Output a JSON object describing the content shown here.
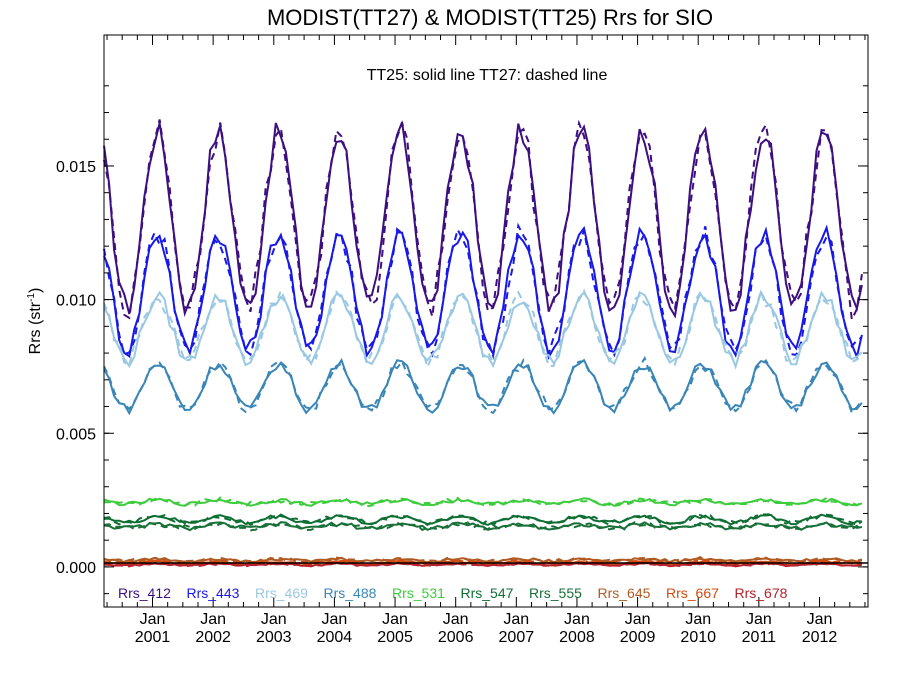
{
  "chart_data": {
    "type": "line",
    "title": "MODIST(TT27) & MODIST(TT25)  Rrs for SIO",
    "subtitle": "TT25: solid line   TT27: dashed line",
    "ylabel_base": "Rrs (str",
    "ylabel_sup": "-1",
    "ylabel_close": ")",
    "ylim": [
      -0.0015,
      0.0199
    ],
    "xlim": [
      2000.2,
      2012.8
    ],
    "yticks": [
      {
        "value": 0.0,
        "label": "0.000"
      },
      {
        "value": 0.005,
        "label": "0.005"
      },
      {
        "value": 0.01,
        "label": "0.010"
      },
      {
        "value": 0.015,
        "label": "0.015"
      }
    ],
    "xticks": [
      {
        "value": 2001,
        "month": "Jan",
        "year": "2001"
      },
      {
        "value": 2002,
        "month": "Jan",
        "year": "2002"
      },
      {
        "value": 2003,
        "month": "Jan",
        "year": "2003"
      },
      {
        "value": 2004,
        "month": "Jan",
        "year": "2004"
      },
      {
        "value": 2005,
        "month": "Jan",
        "year": "2005"
      },
      {
        "value": 2006,
        "month": "Jan",
        "year": "2006"
      },
      {
        "value": 2007,
        "month": "Jan",
        "year": "2007"
      },
      {
        "value": 2008,
        "month": "Jan",
        "year": "2008"
      },
      {
        "value": 2009,
        "month": "Jan",
        "year": "2009"
      },
      {
        "value": 2010,
        "month": "Jan",
        "year": "2010"
      },
      {
        "value": 2011,
        "month": "Jan",
        "year": "2011"
      },
      {
        "value": 2012,
        "month": "Jan",
        "year": "2012"
      }
    ],
    "grid": false,
    "legend": "bottom",
    "series": [
      {
        "name": "Rrs_412",
        "color": "#3d0f80"
      },
      {
        "name": "Rrs_443",
        "color": "#1818e8"
      },
      {
        "name": "Rrs_469",
        "color": "#9ac8e2"
      },
      {
        "name": "Rrs_488",
        "color": "#3a86b6"
      },
      {
        "name": "Rrs_531",
        "color": "#3dcc3d"
      },
      {
        "name": "Rrs_547",
        "color": "#0f6e34"
      },
      {
        "name": "Rrs_555",
        "color": "#187038"
      },
      {
        "name": "Rrs_645",
        "color": "#b05a22"
      },
      {
        "name": "Rrs_667",
        "color": "#d44a10"
      },
      {
        "name": "Rrs_678",
        "color": "#b8202a"
      }
    ],
    "profiles": [
      {
        "min": 0.0097,
        "max": 0.0163,
        "noise": 0.00045,
        "offset": 0.0
      },
      {
        "min": 0.0081,
        "max": 0.0125,
        "noise": 0.00035,
        "offset": 0.0
      },
      {
        "min": 0.0077,
        "max": 0.0101,
        "noise": 0.00025,
        "offset": 0.0
      },
      {
        "min": 0.0059,
        "max": 0.0076,
        "noise": 0.00018,
        "offset": 0.0
      },
      {
        "min": 0.00235,
        "max": 0.0025,
        "noise": 7e-05,
        "offset": 0.0
      },
      {
        "min": 0.00165,
        "max": 0.0019,
        "noise": 8e-05,
        "offset": 0.0
      },
      {
        "min": 0.00145,
        "max": 0.0016,
        "noise": 8e-05,
        "offset": 0.0
      },
      {
        "min": 0.00022,
        "max": 0.0003,
        "noise": 5e-05,
        "offset": 0.0
      },
      {
        "min": 0.00012,
        "max": 0.0002,
        "noise": 4e-05,
        "offset": 0.0
      },
      {
        "min": 5e-05,
        "max": 0.00012,
        "noise": 3e-05,
        "offset": 0.0
      }
    ]
  }
}
